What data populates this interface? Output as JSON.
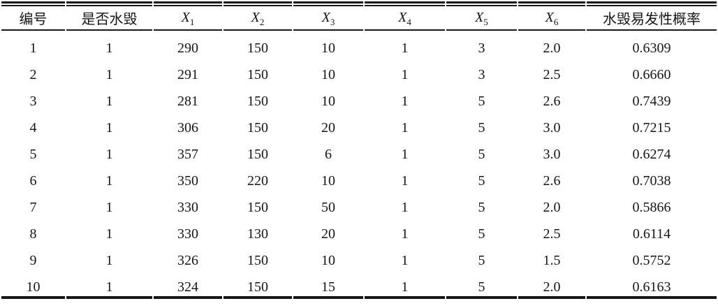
{
  "table": {
    "columns": [
      {
        "label": "编号"
      },
      {
        "label": "是否水毁"
      },
      {
        "label": "X",
        "sub": "1"
      },
      {
        "label": "X",
        "sub": "2"
      },
      {
        "label": "X",
        "sub": "3"
      },
      {
        "label": "X",
        "sub": "4"
      },
      {
        "label": "X",
        "sub": "5"
      },
      {
        "label": "X",
        "sub": "6"
      },
      {
        "label": "水毁易发性概率"
      }
    ],
    "rows": [
      [
        "1",
        "1",
        "290",
        "150",
        "10",
        "1",
        "3",
        "2.0",
        "0.6309"
      ],
      [
        "2",
        "1",
        "291",
        "150",
        "10",
        "1",
        "3",
        "2.5",
        "0.6660"
      ],
      [
        "3",
        "1",
        "281",
        "150",
        "10",
        "1",
        "5",
        "2.6",
        "0.7439"
      ],
      [
        "4",
        "1",
        "306",
        "150",
        "20",
        "1",
        "5",
        "3.0",
        "0.7215"
      ],
      [
        "5",
        "1",
        "357",
        "150",
        "6",
        "1",
        "5",
        "3.0",
        "0.6274"
      ],
      [
        "6",
        "1",
        "350",
        "220",
        "10",
        "1",
        "5",
        "2.6",
        "0.7038"
      ],
      [
        "7",
        "1",
        "330",
        "150",
        "50",
        "1",
        "5",
        "2.0",
        "0.5866"
      ],
      [
        "8",
        "1",
        "330",
        "130",
        "20",
        "1",
        "5",
        "2.5",
        "0.6114"
      ],
      [
        "9",
        "1",
        "326",
        "150",
        "10",
        "1",
        "5",
        "1.5",
        "0.5752"
      ],
      [
        "10",
        "1",
        "324",
        "150",
        "15",
        "1",
        "5",
        "2.0",
        "0.6163"
      ]
    ],
    "colors": {
      "text": "#161616",
      "rule": "#161616",
      "background": "#ffffff"
    }
  }
}
